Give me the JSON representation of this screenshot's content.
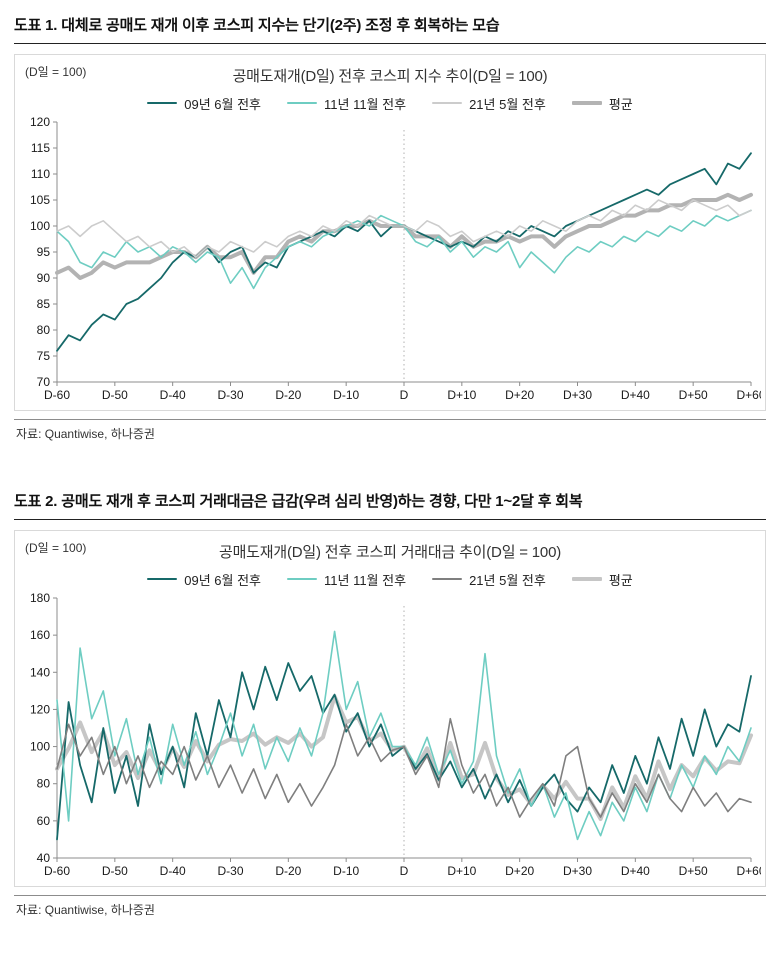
{
  "page": {
    "fig1": {
      "heading": "도표 1. 대체로 공매도 재개 이후 코스피 지수는 단기(2주) 조정 후 회복하는 모습",
      "source": "자료: Quantiwise, 하나증권"
    },
    "fig2": {
      "heading": "도표 2. 공매도 재개 후 코스피 거래대금은 급감(우려 심리 반영)하는 경향, 다만 1~2달 후 회복",
      "source": "자료: Quantiwise, 하나증권"
    }
  },
  "chart_data": [
    {
      "type": "line",
      "title": "공매도재개(D일) 전후 코스피 지수 추이(D일 = 100)",
      "unit_label": "(D일 = 100)",
      "xlabel": "",
      "ylabel": "",
      "xlim": [
        -60,
        60
      ],
      "ylim": [
        70,
        120
      ],
      "yticks": [
        70,
        75,
        80,
        85,
        90,
        95,
        100,
        105,
        110,
        115,
        120
      ],
      "xticks": [
        {
          "v": -60,
          "label": "D-60"
        },
        {
          "v": -50,
          "label": "D-50"
        },
        {
          "v": -40,
          "label": "D-40"
        },
        {
          "v": -30,
          "label": "D-30"
        },
        {
          "v": -20,
          "label": "D-20"
        },
        {
          "v": -10,
          "label": "D-10"
        },
        {
          "v": 0,
          "label": "D"
        },
        {
          "v": 10,
          "label": "D+10"
        },
        {
          "v": 20,
          "label": "D+20"
        },
        {
          "v": 30,
          "label": "D+30"
        },
        {
          "v": 40,
          "label": "D+40"
        },
        {
          "v": 50,
          "label": "D+50"
        },
        {
          "v": 60,
          "label": "D+60"
        }
      ],
      "grid": false,
      "legend_position": "top",
      "marker_line_value": 0,
      "x": [
        -60,
        -58,
        -56,
        -54,
        -52,
        -50,
        -48,
        -46,
        -44,
        -42,
        -40,
        -38,
        -36,
        -34,
        -32,
        -30,
        -28,
        -26,
        -24,
        -22,
        -20,
        -18,
        -16,
        -14,
        -12,
        -10,
        -8,
        -6,
        -4,
        -2,
        0,
        2,
        4,
        6,
        8,
        10,
        12,
        14,
        16,
        18,
        20,
        22,
        24,
        26,
        28,
        30,
        32,
        34,
        36,
        38,
        40,
        42,
        44,
        46,
        48,
        50,
        52,
        54,
        56,
        58,
        60
      ],
      "series": [
        {
          "name": "09년 6월 전후",
          "color": "#166969",
          "width": 1.8,
          "values": [
            76,
            79,
            78,
            81,
            83,
            82,
            85,
            86,
            88,
            90,
            93,
            95,
            94,
            96,
            93,
            95,
            96,
            91,
            93,
            92,
            96,
            97,
            98,
            99,
            98,
            100,
            99,
            101,
            98,
            100,
            100,
            99,
            98,
            97,
            96,
            97,
            96,
            98,
            97,
            99,
            98,
            100,
            99,
            98,
            100,
            101,
            102,
            103,
            104,
            105,
            106,
            107,
            106,
            108,
            109,
            110,
            111,
            108,
            112,
            111,
            114
          ]
        },
        {
          "name": "11년 11월 전후",
          "color": "#6ecdc2",
          "width": 1.6,
          "values": [
            99,
            97,
            93,
            92,
            95,
            94,
            97,
            95,
            96,
            94,
            96,
            95,
            93,
            95,
            94,
            89,
            92,
            88,
            92,
            94,
            96,
            97,
            96,
            98,
            99,
            100,
            101,
            100,
            102,
            101,
            100,
            97,
            96,
            98,
            95,
            97,
            94,
            96,
            95,
            97,
            92,
            95,
            93,
            91,
            94,
            96,
            95,
            97,
            96,
            98,
            97,
            99,
            98,
            100,
            99,
            101,
            100,
            102,
            101,
            102,
            103
          ]
        },
        {
          "name": "21년 5월 전후",
          "color": "#cccccc",
          "width": 1.6,
          "values": [
            99,
            100,
            98,
            100,
            101,
            99,
            97,
            98,
            96,
            97,
            95,
            96,
            94,
            96,
            95,
            97,
            96,
            95,
            97,
            96,
            98,
            99,
            98,
            100,
            99,
            101,
            100,
            102,
            101,
            100,
            100,
            99,
            101,
            100,
            98,
            99,
            97,
            98,
            99,
            98,
            100,
            99,
            101,
            100,
            99,
            101,
            102,
            101,
            103,
            102,
            104,
            103,
            105,
            104,
            103,
            105,
            104,
            103,
            104,
            102,
            103
          ]
        },
        {
          "name": "평균",
          "color": "#b3b3b3",
          "width": 4,
          "values": [
            91,
            92,
            90,
            91,
            93,
            92,
            93,
            93,
            93,
            94,
            95,
            95,
            94,
            96,
            94,
            94,
            95,
            91,
            94,
            94,
            97,
            98,
            97,
            99,
            99,
            100,
            100,
            101,
            100,
            100,
            100,
            98,
            98,
            98,
            96,
            98,
            96,
            97,
            97,
            98,
            97,
            98,
            98,
            96,
            98,
            99,
            100,
            100,
            101,
            102,
            102,
            103,
            103,
            104,
            104,
            105,
            105,
            105,
            106,
            105,
            106
          ]
        }
      ]
    },
    {
      "type": "line",
      "title": "공매도재개(D일) 전후 코스피 거래대금 추이(D일 = 100)",
      "unit_label": "(D일 = 100)",
      "xlabel": "",
      "ylabel": "",
      "xlim": [
        -60,
        60
      ],
      "ylim": [
        40,
        180
      ],
      "yticks": [
        40,
        60,
        80,
        100,
        120,
        140,
        160,
        180
      ],
      "xticks": [
        {
          "v": -60,
          "label": "D-60"
        },
        {
          "v": -50,
          "label": "D-50"
        },
        {
          "v": -40,
          "label": "D-40"
        },
        {
          "v": -30,
          "label": "D-30"
        },
        {
          "v": -20,
          "label": "D-20"
        },
        {
          "v": -10,
          "label": "D-10"
        },
        {
          "v": 0,
          "label": "D"
        },
        {
          "v": 10,
          "label": "D+10"
        },
        {
          "v": 20,
          "label": "D+20"
        },
        {
          "v": 30,
          "label": "D+30"
        },
        {
          "v": 40,
          "label": "D+40"
        },
        {
          "v": 50,
          "label": "D+50"
        },
        {
          "v": 60,
          "label": "D+60"
        }
      ],
      "grid": false,
      "legend_position": "top",
      "marker_line_value": 0,
      "x": [
        -60,
        -58,
        -56,
        -54,
        -52,
        -50,
        -48,
        -46,
        -44,
        -42,
        -40,
        -38,
        -36,
        -34,
        -32,
        -30,
        -28,
        -26,
        -24,
        -22,
        -20,
        -18,
        -16,
        -14,
        -12,
        -10,
        -8,
        -6,
        -4,
        -2,
        0,
        2,
        4,
        6,
        8,
        10,
        12,
        14,
        16,
        18,
        20,
        22,
        24,
        26,
        28,
        30,
        32,
        34,
        36,
        38,
        40,
        42,
        44,
        46,
        48,
        50,
        52,
        54,
        56,
        58,
        60
      ],
      "series": [
        {
          "name": "09년 6월 전후",
          "color": "#166969",
          "width": 1.8,
          "values": [
            50,
            124,
            90,
            70,
            110,
            75,
            95,
            68,
            112,
            85,
            100,
            78,
            118,
            95,
            125,
            105,
            140,
            120,
            143,
            125,
            145,
            130,
            138,
            118,
            128,
            108,
            118,
            100,
            112,
            95,
            100,
            88,
            96,
            82,
            92,
            78,
            88,
            72,
            85,
            70,
            82,
            68,
            78,
            85,
            72,
            65,
            78,
            70,
            90,
            75,
            95,
            80,
            105,
            88,
            115,
            95,
            120,
            100,
            112,
            108,
            138
          ]
        },
        {
          "name": "11년 11월 전후",
          "color": "#6ecdc2",
          "width": 1.6,
          "values": [
            125,
            60,
            153,
            115,
            130,
            95,
            115,
            85,
            105,
            80,
            112,
            90,
            108,
            85,
            100,
            118,
            95,
            112,
            88,
            105,
            92,
            110,
            95,
            118,
            162,
            120,
            135,
            105,
            118,
            100,
            100,
            90,
            105,
            85,
            98,
            80,
            92,
            150,
            95,
            75,
            88,
            68,
            80,
            62,
            75,
            50,
            65,
            52,
            70,
            60,
            78,
            65,
            85,
            72,
            90,
            78,
            95,
            85,
            100,
            92,
            110
          ]
        },
        {
          "name": "21년 5월 전후",
          "color": "#7f7f7f",
          "width": 1.6,
          "values": [
            88,
            112,
            95,
            105,
            85,
            100,
            80,
            95,
            78,
            92,
            85,
            100,
            82,
            95,
            78,
            90,
            75,
            88,
            72,
            85,
            70,
            80,
            68,
            78,
            90,
            112,
            95,
            105,
            92,
            98,
            100,
            85,
            95,
            78,
            115,
            90,
            75,
            85,
            68,
            78,
            62,
            72,
            80,
            68,
            95,
            100,
            72,
            62,
            75,
            65,
            80,
            70,
            85,
            72,
            65,
            78,
            68,
            75,
            65,
            72,
            70
          ]
        },
        {
          "name": "평균",
          "color": "#c6c6c6",
          "width": 4,
          "values": [
            88,
            99,
            113,
            97,
            108,
            90,
            97,
            83,
            98,
            86,
            99,
            89,
            103,
            92,
            101,
            104,
            103,
            107,
            101,
            105,
            102,
            107,
            100,
            105,
            127,
            113,
            116,
            103,
            107,
            98,
            100,
            88,
            99,
            82,
            102,
            83,
            85,
            102,
            83,
            74,
            77,
            69,
            79,
            72,
            81,
            72,
            72,
            61,
            78,
            67,
            84,
            72,
            92,
            77,
            90,
            84,
            94,
            87,
            92,
            91,
            106
          ]
        }
      ]
    }
  ]
}
